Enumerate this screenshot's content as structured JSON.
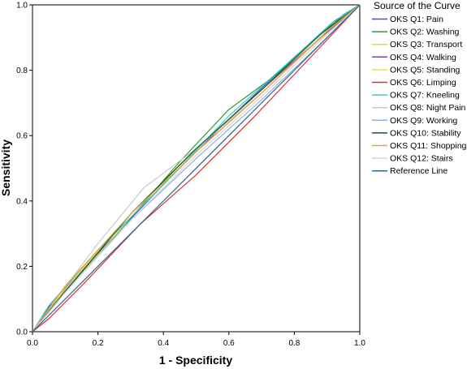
{
  "chart_data": {
    "type": "line",
    "xlabel": "1 - Specificity",
    "ylabel": "Sensitivity",
    "xlim": [
      0,
      1
    ],
    "ylim": [
      0,
      1
    ],
    "x_ticks": [
      "0.0",
      "0.2",
      "0.4",
      "0.6",
      "0.8",
      "1.0"
    ],
    "y_ticks": [
      "0.0",
      "0.2",
      "0.4",
      "0.6",
      "0.8",
      "1.0"
    ],
    "grid": false,
    "legend": {
      "title": "Source of the Curve",
      "position": "right"
    },
    "series": [
      {
        "name": "OKS Q1: Pain",
        "color": "#3b55c8",
        "points": [
          [
            0,
            0
          ],
          [
            0.06,
            0.09
          ],
          [
            0.2,
            0.24
          ],
          [
            0.4,
            0.45
          ],
          [
            0.6,
            0.65
          ],
          [
            0.8,
            0.84
          ],
          [
            0.95,
            0.97
          ],
          [
            1,
            1
          ]
        ]
      },
      {
        "name": "OKS Q2: Washing",
        "color": "#2ca02c",
        "points": [
          [
            0,
            0
          ],
          [
            0.05,
            0.07
          ],
          [
            0.25,
            0.29
          ],
          [
            0.45,
            0.52
          ],
          [
            0.6,
            0.68
          ],
          [
            0.75,
            0.79
          ],
          [
            0.9,
            0.93
          ],
          [
            1,
            1
          ]
        ]
      },
      {
        "name": "OKS Q3: Transport",
        "color": "#c9d480",
        "points": [
          [
            0,
            0
          ],
          [
            0.1,
            0.12
          ],
          [
            0.3,
            0.35
          ],
          [
            0.5,
            0.55
          ],
          [
            0.7,
            0.73
          ],
          [
            0.85,
            0.87
          ],
          [
            1,
            1
          ]
        ]
      },
      {
        "name": "OKS Q4: Walking",
        "color": "#8040b0",
        "points": [
          [
            0,
            0
          ],
          [
            0.08,
            0.1
          ],
          [
            0.3,
            0.36
          ],
          [
            0.5,
            0.56
          ],
          [
            0.7,
            0.74
          ],
          [
            0.88,
            0.9
          ],
          [
            1,
            1
          ]
        ]
      },
      {
        "name": "OKS Q5: Standing",
        "color": "#f0e040",
        "points": [
          [
            0,
            0
          ],
          [
            0.1,
            0.13
          ],
          [
            0.3,
            0.36
          ],
          [
            0.5,
            0.55
          ],
          [
            0.7,
            0.73
          ],
          [
            0.9,
            0.92
          ],
          [
            1,
            1
          ]
        ]
      },
      {
        "name": "OKS Q6: Limping",
        "color": "#e03030",
        "points": [
          [
            0,
            0
          ],
          [
            0.05,
            0.04
          ],
          [
            0.15,
            0.14
          ],
          [
            0.33,
            0.33
          ],
          [
            0.5,
            0.48
          ],
          [
            0.67,
            0.65
          ],
          [
            0.85,
            0.84
          ],
          [
            1,
            1
          ]
        ]
      },
      {
        "name": "OKS Q7: Kneeling",
        "color": "#3cc8c8",
        "points": [
          [
            0,
            0
          ],
          [
            0.05,
            0.08
          ],
          [
            0.2,
            0.25
          ],
          [
            0.4,
            0.45
          ],
          [
            0.6,
            0.66
          ],
          [
            0.8,
            0.84
          ],
          [
            0.92,
            0.95
          ],
          [
            1,
            1
          ]
        ]
      },
      {
        "name": "OKS Q8: Night Pain",
        "color": "#c8c8c8",
        "points": [
          [
            0,
            0
          ],
          [
            0.08,
            0.11
          ],
          [
            0.2,
            0.27
          ],
          [
            0.34,
            0.44
          ],
          [
            0.5,
            0.56
          ],
          [
            0.7,
            0.73
          ],
          [
            0.9,
            0.92
          ],
          [
            1,
            1
          ]
        ]
      },
      {
        "name": "OKS Q9: Working",
        "color": "#8fb0d8",
        "points": [
          [
            0,
            0
          ],
          [
            0.1,
            0.12
          ],
          [
            0.3,
            0.34
          ],
          [
            0.5,
            0.53
          ],
          [
            0.7,
            0.71
          ],
          [
            0.9,
            0.9
          ],
          [
            1,
            1
          ]
        ]
      },
      {
        "name": "OKS Q10: Stability",
        "color": "#1a5a2a",
        "points": [
          [
            0,
            0
          ],
          [
            0.08,
            0.1
          ],
          [
            0.3,
            0.36
          ],
          [
            0.5,
            0.56
          ],
          [
            0.7,
            0.74
          ],
          [
            0.88,
            0.91
          ],
          [
            1,
            1
          ]
        ]
      },
      {
        "name": "OKS Q11: Shopping",
        "color": "#f0a030",
        "points": [
          [
            0,
            0
          ],
          [
            0.1,
            0.14
          ],
          [
            0.3,
            0.36
          ],
          [
            0.5,
            0.55
          ],
          [
            0.7,
            0.73
          ],
          [
            0.9,
            0.92
          ],
          [
            1,
            1
          ]
        ]
      },
      {
        "name": "OKS Q12: Stairs",
        "color": "#d8d0e8",
        "points": [
          [
            0,
            0
          ],
          [
            0.1,
            0.12
          ],
          [
            0.3,
            0.34
          ],
          [
            0.5,
            0.54
          ],
          [
            0.7,
            0.72
          ],
          [
            0.9,
            0.91
          ],
          [
            1,
            1
          ]
        ]
      },
      {
        "name": "Reference Line",
        "color": "#2a6a8a",
        "points": [
          [
            0,
            0
          ],
          [
            1,
            1
          ]
        ]
      }
    ]
  }
}
